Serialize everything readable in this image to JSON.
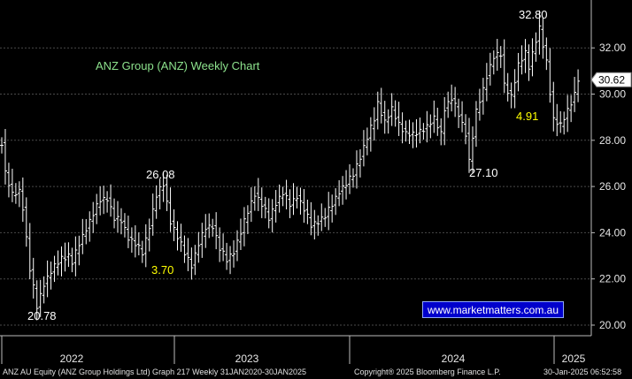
{
  "chart_data": {
    "type": "ohlc",
    "title": "ANZ Group (ANZ) Weekly Chart",
    "y_ticks": [
      20.0,
      22.0,
      24.0,
      26.0,
      28.0,
      30.0,
      32.0
    ],
    "ylim": [
      19.6,
      33.8
    ],
    "x_labels": [
      "2022",
      "2023",
      "2024",
      "2025"
    ],
    "last_price": "30.62",
    "annotations": [
      {
        "text": "32.80",
        "color": "#ffffff"
      },
      {
        "text": "26.08",
        "color": "#ffffff"
      },
      {
        "text": "27.10",
        "color": "#ffffff"
      },
      {
        "text": "20.78",
        "color": "#ffffff"
      },
      {
        "text": "3.70",
        "color": "#ffff00"
      },
      {
        "text": "4.91",
        "color": "#ffff00"
      }
    ],
    "anchors": [
      [
        0,
        27.9
      ],
      [
        1,
        26.6
      ],
      [
        3,
        25.6
      ],
      [
        5,
        25.8
      ],
      [
        6,
        25.1
      ],
      [
        8,
        22.4
      ],
      [
        10,
        20.78
      ],
      [
        12,
        21.8
      ],
      [
        14,
        22.3
      ],
      [
        17,
        22.9
      ],
      [
        19,
        23.0
      ],
      [
        20,
        22.7
      ],
      [
        22,
        23.5
      ],
      [
        24,
        24.2
      ],
      [
        26,
        24.8
      ],
      [
        28,
        25.4
      ],
      [
        30,
        25.5
      ],
      [
        32,
        24.6
      ],
      [
        34,
        24.5
      ],
      [
        36,
        23.8
      ],
      [
        38,
        23.5
      ],
      [
        40,
        23.1
      ],
      [
        42,
        24.3
      ],
      [
        44,
        25.6
      ],
      [
        46,
        26.08
      ],
      [
        48,
        24.5
      ],
      [
        50,
        23.8
      ],
      [
        52,
        23.1
      ],
      [
        54,
        22.6
      ],
      [
        56,
        23.5
      ],
      [
        58,
        24.2
      ],
      [
        60,
        24.3
      ],
      [
        62,
        23.3
      ],
      [
        64,
        22.8
      ],
      [
        66,
        23.2
      ],
      [
        68,
        24.0
      ],
      [
        70,
        24.9
      ],
      [
        72,
        25.7
      ],
      [
        74,
        25.2
      ],
      [
        76,
        24.6
      ],
      [
        78,
        25.3
      ],
      [
        80,
        25.7
      ],
      [
        82,
        25.2
      ],
      [
        84,
        25.6
      ],
      [
        86,
        25.0
      ],
      [
        88,
        24.3
      ],
      [
        90,
        24.5
      ],
      [
        92,
        24.7
      ],
      [
        94,
        25.2
      ],
      [
        96,
        25.8
      ],
      [
        98,
        26.1
      ],
      [
        100,
        26.5
      ],
      [
        102,
        27.3
      ],
      [
        104,
        28.1
      ],
      [
        106,
        28.9
      ],
      [
        107,
        29.6
      ],
      [
        109,
        28.8
      ],
      [
        111,
        29.3
      ],
      [
        113,
        28.7
      ],
      [
        115,
        28.3
      ],
      [
        117,
        28.2
      ],
      [
        119,
        28.4
      ],
      [
        121,
        28.6
      ],
      [
        123,
        28.9
      ],
      [
        125,
        28.3
      ],
      [
        126,
        29.4
      ],
      [
        128,
        29.8
      ],
      [
        130,
        29.1
      ],
      [
        132,
        28.3
      ],
      [
        133,
        27.1
      ],
      [
        135,
        29.2
      ],
      [
        137,
        30.2
      ],
      [
        138,
        30.8
      ],
      [
        140,
        31.6
      ],
      [
        142,
        31.7
      ],
      [
        143,
        30.4
      ],
      [
        145,
        29.9
      ],
      [
        147,
        31.2
      ],
      [
        149,
        31.8
      ],
      [
        150,
        31.2
      ],
      [
        152,
        32.3
      ],
      [
        153,
        32.8
      ],
      [
        155,
        31.4
      ],
      [
        156,
        30.1
      ],
      [
        157,
        28.9
      ],
      [
        159,
        28.6
      ],
      [
        161,
        29.3
      ],
      [
        163,
        30.0
      ],
      [
        164,
        30.62
      ]
    ]
  },
  "watermark": "www.marketmatters.com.au",
  "footer": {
    "left": "ANZ AU Equity (ANZ Group Holdings Ltd) Graph 217  Weekly 31JAN2020-30JAN2025",
    "mid": "Copyright® 2025 Bloomberg Finance L.P.",
    "right": "30-Jan-2025 06:52:58"
  }
}
